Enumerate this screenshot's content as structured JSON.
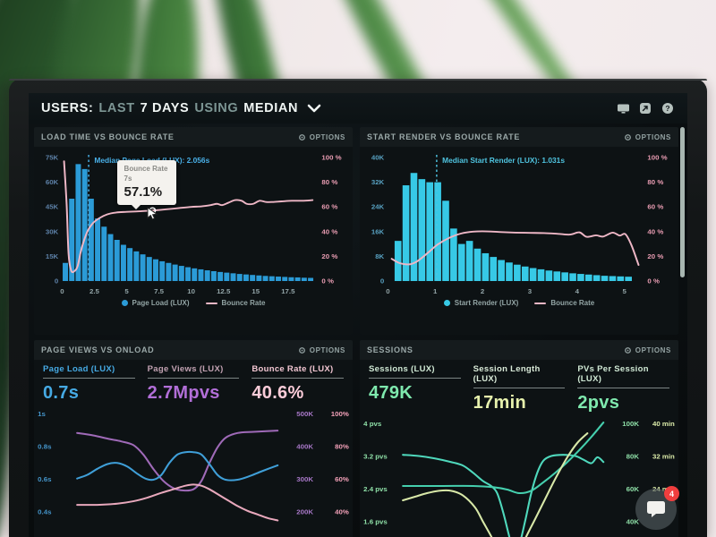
{
  "header": {
    "segments": [
      {
        "text": "USERS:",
        "style": "strong"
      },
      {
        "text": "LAST",
        "style": "muted"
      },
      {
        "text": "7 DAYS",
        "style": "strong"
      },
      {
        "text": "USING",
        "style": "muted"
      },
      {
        "text": "MEDIAN",
        "style": "strong"
      }
    ],
    "icons": [
      "display-icon",
      "share-icon",
      "help-icon"
    ]
  },
  "panels": {
    "load_time": {
      "title": "LOAD TIME VS BOUNCE RATE",
      "options_label": "OPTIONS",
      "legend": [
        {
          "label": "Page Load (LUX)"
        },
        {
          "label": "Bounce Rate"
        }
      ],
      "tooltip": {
        "line1": "Bounce Rate",
        "line2": "7s",
        "value": "57.1%"
      }
    },
    "start_render": {
      "title": "START RENDER VS BOUNCE RATE",
      "options_label": "OPTIONS",
      "legend": [
        {
          "label": "Start Render (LUX)"
        },
        {
          "label": "Bounce Rate"
        }
      ]
    },
    "page_views": {
      "title": "PAGE VIEWS VS ONLOAD",
      "options_label": "OPTIONS",
      "metrics": [
        {
          "label": "Page Load (LUX)",
          "value": "0.7s",
          "color": "blue"
        },
        {
          "label": "Page Views (LUX)",
          "value": "2.7Mpvs",
          "color": "purple"
        },
        {
          "label": "Bounce Rate (LUX)",
          "value": "40.6%",
          "color": "pink"
        }
      ]
    },
    "sessions": {
      "title": "SESSIONS",
      "options_label": "OPTIONS",
      "metrics": [
        {
          "label": "Sessions (LUX)",
          "value": "479K",
          "color": "green"
        },
        {
          "label": "Session Length (LUX)",
          "value": "17min",
          "color": "pale"
        },
        {
          "label": "PVs Per Session (LUX)",
          "value": "2pvs",
          "color": "green"
        }
      ]
    }
  },
  "fab": {
    "badge": "4"
  },
  "chart_data": [
    {
      "type": "bar",
      "title": "LOAD TIME VS BOUNCE RATE",
      "x_range": [
        0,
        19.6
      ],
      "x_ticks": [
        "0",
        "2.5",
        "5",
        "7.5",
        "10",
        "12.5",
        "15",
        "17.5"
      ],
      "y_left": {
        "max": 75,
        "ticks": [
          "75K",
          "60K",
          "45K",
          "30K",
          "15K",
          "0"
        ]
      },
      "y_right": {
        "max": 100,
        "ticks": [
          "100 %",
          "80 %",
          "60 %",
          "40 %",
          "20 %",
          "0 %"
        ]
      },
      "bar_start": 0,
      "bar_step": 0.5,
      "bar_color": "#2b9bd7",
      "tick_left_class": "tick-left",
      "bars": {
        "name": "Page Load (LUX)",
        "values": [
          11,
          50,
          71,
          68,
          50,
          38,
          33,
          28.5,
          25,
          22,
          20,
          18,
          16.2,
          14.6,
          13.2,
          12,
          11,
          10,
          9.2,
          8.4,
          7.7,
          7.1,
          6.5,
          6,
          5.5,
          5.1,
          4.7,
          4.3,
          4,
          3.7,
          3.4,
          3.1,
          2.9,
          2.7,
          2.5,
          2.3,
          2.2,
          2,
          1.9
        ]
      },
      "line": {
        "name": "Bounce Rate",
        "color": "#eeb7c6",
        "points": [
          [
            0.15,
            97
          ],
          [
            0.35,
            62
          ],
          [
            0.5,
            22
          ],
          [
            0.7,
            8.5
          ],
          [
            0.95,
            8
          ],
          [
            1.2,
            12
          ],
          [
            1.45,
            24
          ],
          [
            1.7,
            33
          ],
          [
            2.0,
            41
          ],
          [
            2.4,
            47
          ],
          [
            2.9,
            51
          ],
          [
            3.5,
            54
          ],
          [
            4.2,
            55.5
          ],
          [
            5,
            56
          ],
          [
            6,
            56.5
          ],
          [
            7,
            57.1
          ],
          [
            8,
            58
          ],
          [
            9,
            59
          ],
          [
            10,
            60
          ],
          [
            10.8,
            60.5
          ],
          [
            11.5,
            61.5
          ],
          [
            12,
            62.5
          ],
          [
            12.4,
            61.5
          ],
          [
            12.9,
            63.5
          ],
          [
            13.4,
            65.5
          ],
          [
            13.9,
            65
          ],
          [
            14.3,
            62.5
          ],
          [
            14.8,
            62.5
          ],
          [
            15.3,
            65
          ],
          [
            15.8,
            64
          ],
          [
            16.3,
            64
          ],
          [
            17,
            64.5
          ],
          [
            17.8,
            65
          ],
          [
            18.6,
            65
          ],
          [
            19.4,
            65.5
          ]
        ]
      },
      "median": {
        "x": 2.056,
        "label": "Median Page Load (LUX): 2.056s",
        "color": "#49b0e8"
      },
      "hover": {
        "x": 7,
        "y": 57.1
      }
    },
    {
      "type": "bar",
      "title": "START RENDER VS BOUNCE RATE",
      "x_range": [
        0,
        5.35
      ],
      "x_ticks": [
        "0",
        "1",
        "2",
        "3",
        "4",
        "5"
      ],
      "y_left": {
        "max": 40,
        "ticks": [
          "40K",
          "32K",
          "24K",
          "16K",
          "8K",
          "0"
        ]
      },
      "y_right": {
        "max": 100,
        "ticks": [
          "100 %",
          "80 %",
          "60 %",
          "40 %",
          "20 %",
          "0 %"
        ]
      },
      "bar_start": 0.13,
      "bar_step": 0.168,
      "bar_color": "#37c9e6",
      "tick_left_class": "tick-left2",
      "bars": {
        "name": "Start Render (LUX)",
        "values": [
          13,
          31,
          35,
          33,
          32,
          32,
          26,
          17,
          12,
          13,
          10.5,
          9,
          7.8,
          6.8,
          6,
          5.3,
          4.7,
          4.2,
          3.8,
          3.4,
          3.1,
          2.8,
          2.5,
          2.3,
          2.1,
          1.9,
          1.7,
          1.6,
          1.5,
          1.4
        ]
      },
      "line": {
        "name": "Bounce Rate",
        "color": "#eeb7c6",
        "points": [
          [
            0.08,
            18
          ],
          [
            0.25,
            14.5
          ],
          [
            0.45,
            13.5
          ],
          [
            0.62,
            16
          ],
          [
            0.85,
            23
          ],
          [
            1.05,
            29.5
          ],
          [
            1.3,
            35
          ],
          [
            1.55,
            38.5
          ],
          [
            1.8,
            40
          ],
          [
            2.1,
            40.2
          ],
          [
            2.4,
            39.6
          ],
          [
            2.7,
            39.2
          ],
          [
            3.0,
            39
          ],
          [
            3.3,
            38.8
          ],
          [
            3.6,
            38.2
          ],
          [
            3.85,
            37.6
          ],
          [
            4.05,
            39.4
          ],
          [
            4.2,
            35.8
          ],
          [
            4.4,
            37
          ],
          [
            4.55,
            36
          ],
          [
            4.75,
            39.2
          ],
          [
            4.9,
            36.8
          ],
          [
            5.02,
            38
          ],
          [
            5.15,
            29
          ],
          [
            5.3,
            13
          ]
        ]
      },
      "median": {
        "x": 1.031,
        "label": "Median Start Render (LUX): 1.031s",
        "color": "#4fc4e0"
      }
    },
    {
      "type": "line",
      "title": "PAGE VIEWS VS ONLOAD",
      "left_labels": [
        "1s",
        "0.8s",
        "0.6s",
        "0.4s"
      ],
      "left_color": "#4596cc",
      "right_labels": [
        [
          "500K",
          "100%"
        ],
        [
          "400K",
          "80%"
        ],
        [
          "300K",
          "60%"
        ],
        [
          "200K",
          "40%"
        ]
      ],
      "right_colors": [
        "#a878c8",
        "#f2a0b8"
      ],
      "series": [
        {
          "name": "Page Views (LUX)",
          "color": "#9f6ab8",
          "points": [
            [
              0,
              0.8
            ],
            [
              0.08,
              0.78
            ],
            [
              0.16,
              0.75
            ],
            [
              0.22,
              0.73
            ],
            [
              0.28,
              0.7
            ],
            [
              0.33,
              0.62
            ],
            [
              0.38,
              0.5
            ],
            [
              0.43,
              0.4
            ],
            [
              0.48,
              0.34
            ],
            [
              0.53,
              0.32
            ],
            [
              0.58,
              0.33
            ],
            [
              0.62,
              0.4
            ],
            [
              0.66,
              0.55
            ],
            [
              0.7,
              0.68
            ],
            [
              0.74,
              0.76
            ],
            [
              0.8,
              0.8
            ],
            [
              0.88,
              0.81
            ],
            [
              1,
              0.82
            ]
          ]
        },
        {
          "name": "Page Load (LUX)",
          "color": "#3f9fd8",
          "points": [
            [
              0,
              0.42
            ],
            [
              0.05,
              0.45
            ],
            [
              0.1,
              0.5
            ],
            [
              0.15,
              0.54
            ],
            [
              0.2,
              0.55
            ],
            [
              0.25,
              0.52
            ],
            [
              0.3,
              0.46
            ],
            [
              0.34,
              0.42
            ],
            [
              0.38,
              0.41
            ],
            [
              0.42,
              0.45
            ],
            [
              0.46,
              0.55
            ],
            [
              0.5,
              0.62
            ],
            [
              0.54,
              0.64
            ],
            [
              0.58,
              0.64
            ],
            [
              0.62,
              0.62
            ],
            [
              0.66,
              0.54
            ],
            [
              0.7,
              0.45
            ],
            [
              0.74,
              0.41
            ],
            [
              0.8,
              0.41
            ],
            [
              0.86,
              0.44
            ],
            [
              0.92,
              0.48
            ],
            [
              1,
              0.53
            ]
          ]
        },
        {
          "name": "Bounce Rate (LUX)",
          "color": "#e8a8bc",
          "points": [
            [
              0,
              0.2
            ],
            [
              0.1,
              0.2
            ],
            [
              0.2,
              0.21
            ],
            [
              0.28,
              0.23
            ],
            [
              0.35,
              0.26
            ],
            [
              0.42,
              0.3
            ],
            [
              0.48,
              0.33
            ],
            [
              0.54,
              0.36
            ],
            [
              0.58,
              0.37
            ],
            [
              0.62,
              0.36
            ],
            [
              0.66,
              0.33
            ],
            [
              0.7,
              0.29
            ],
            [
              0.75,
              0.24
            ],
            [
              0.8,
              0.19
            ],
            [
              0.85,
              0.15
            ],
            [
              0.9,
              0.12
            ],
            [
              0.95,
              0.09
            ],
            [
              1,
              0.07
            ]
          ]
        }
      ]
    },
    {
      "type": "line",
      "title": "SESSIONS",
      "left_labels": [
        "4 pvs",
        "3.2 pvs",
        "2.4 pvs",
        "1.6 pvs"
      ],
      "left_color": "#8fe0a8",
      "right_labels": [
        [
          "100K",
          "40 min"
        ],
        [
          "80K",
          "32 min"
        ],
        [
          "60K",
          "24 min"
        ],
        [
          "40K",
          ""
        ]
      ],
      "right_colors": [
        "#8fe0a8",
        "#dcecaa"
      ],
      "series": [
        {
          "name": "Sessions (LUX)",
          "color": "#4fd8bc",
          "points": [
            [
              0,
              0.7
            ],
            [
              0.08,
              0.69
            ],
            [
              0.16,
              0.67
            ],
            [
              0.24,
              0.64
            ],
            [
              0.3,
              0.61
            ],
            [
              0.35,
              0.55
            ],
            [
              0.4,
              0.48
            ],
            [
              0.44,
              0.44
            ],
            [
              0.47,
              0.38
            ],
            [
              0.5,
              0.22
            ],
            [
              0.53,
              0.02
            ],
            [
              0.55,
              -0.1
            ],
            [
              0.58,
              -0.05
            ],
            [
              0.61,
              0.15
            ],
            [
              0.64,
              0.38
            ],
            [
              0.67,
              0.55
            ],
            [
              0.7,
              0.65
            ],
            [
              0.74,
              0.69
            ],
            [
              0.8,
              0.7
            ],
            [
              0.86,
              0.69
            ],
            [
              0.9,
              0.66
            ],
            [
              0.94,
              0.63
            ],
            [
              0.97,
              0.68
            ],
            [
              1,
              0.64
            ]
          ]
        },
        {
          "name": "PVs Per Session (LUX)",
          "color": "#45cfae",
          "points": [
            [
              0,
              0.44
            ],
            [
              0.2,
              0.44
            ],
            [
              0.35,
              0.44
            ],
            [
              0.45,
              0.43
            ],
            [
              0.52,
              0.41
            ],
            [
              0.58,
              0.38
            ],
            [
              0.64,
              0.4
            ],
            [
              0.7,
              0.47
            ],
            [
              0.76,
              0.55
            ],
            [
              0.82,
              0.64
            ],
            [
              0.88,
              0.74
            ],
            [
              0.94,
              0.85
            ],
            [
              1,
              0.97
            ]
          ]
        },
        {
          "name": "Session Length (LUX)",
          "color": "#d8e8a8",
          "points": [
            [
              0,
              0.32
            ],
            [
              0.06,
              0.35
            ],
            [
              0.12,
              0.38
            ],
            [
              0.18,
              0.4
            ],
            [
              0.24,
              0.4
            ],
            [
              0.3,
              0.36
            ],
            [
              0.36,
              0.26
            ],
            [
              0.4,
              0.14
            ],
            [
              0.44,
              0.02
            ],
            [
              0.47,
              -0.08
            ],
            [
              0.52,
              -0.12
            ],
            [
              0.58,
              -0.08
            ],
            [
              0.64,
              0.1
            ],
            [
              0.7,
              0.3
            ],
            [
              0.76,
              0.5
            ],
            [
              0.82,
              0.68
            ],
            [
              0.87,
              0.8
            ],
            [
              0.92,
              0.88
            ]
          ]
        }
      ]
    }
  ]
}
